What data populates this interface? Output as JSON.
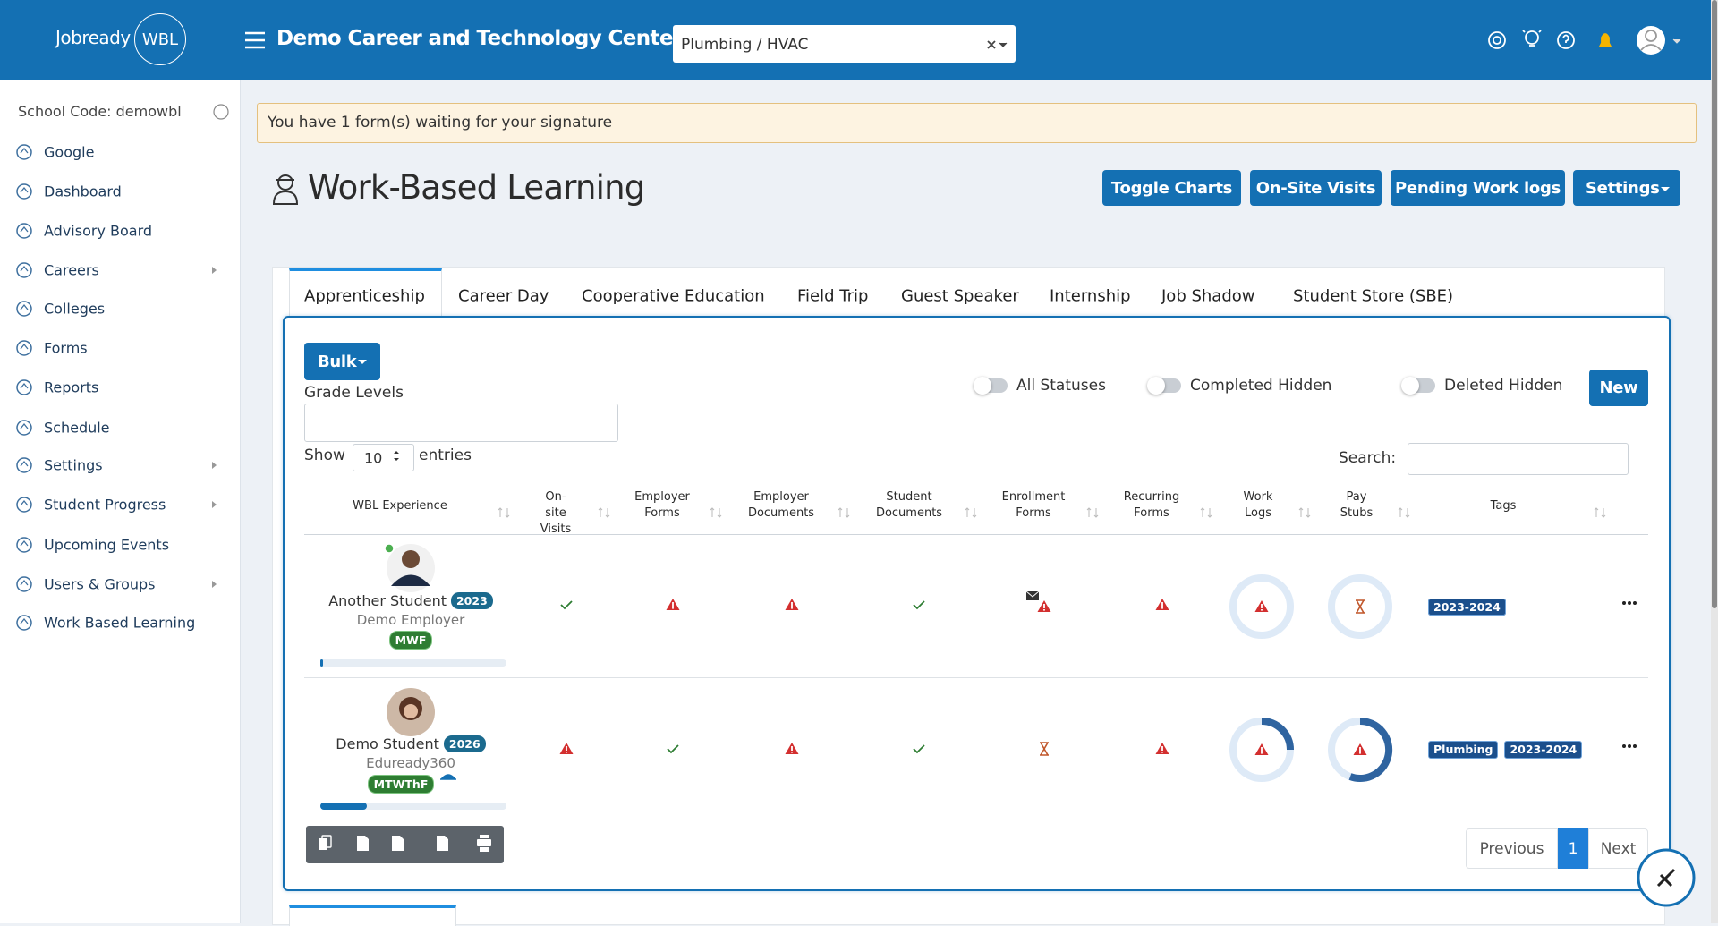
{
  "header": {
    "brand": "Jobready",
    "brand_badge": "WBL",
    "title": "Demo Career and Technology Center",
    "program_select": "Plumbing / HVAC"
  },
  "sidebar": {
    "school_code": "School Code: demowbl",
    "items": [
      "Google",
      "Dashboard",
      "Advisory Board",
      "Careers",
      "Colleges",
      "Forms",
      "Reports",
      "Schedule",
      "Settings",
      "Student Progress",
      "Upcoming Events",
      "Users & Groups",
      "Work Based Learning"
    ]
  },
  "alert": "You have 1 form(s) waiting for your signature",
  "page": {
    "title": "Work-Based Learning",
    "buttons": [
      "Toggle Charts",
      "On-Site Visits",
      "Pending Work logs",
      "Settings"
    ]
  },
  "tabs": [
    "Apprenticeship",
    "Career Day",
    "Cooperative Education",
    "Field Trip",
    "Guest Speaker",
    "Internship",
    "Job Shadow",
    "Student Store (SBE)"
  ],
  "toolbar": {
    "bulk": "Bulk",
    "grade_levels": "Grade Levels",
    "toggles": [
      "All Statuses",
      "Completed Hidden",
      "Deleted Hidden"
    ],
    "new": "New",
    "show": "Show",
    "entries_value": "10",
    "entries": "entries",
    "search": "Search:"
  },
  "table": {
    "columns": [
      "WBL Experience",
      "On-site Visits",
      "Employer Forms",
      "Employer Documents",
      "Student Documents",
      "Enrollment Forms",
      "Recurring Forms",
      "Work Logs",
      "Pay Stubs",
      "Tags"
    ],
    "rows": [
      {
        "name": "Another Student",
        "year": "2023",
        "employer": "Demo Employer",
        "schedule": "MWF",
        "tags": [
          "2023-2024"
        ]
      },
      {
        "name": "Demo Student",
        "year": "2026",
        "employer": "Eduready360",
        "schedule": "MTWThF",
        "tags": [
          "Plumbing",
          "2023-2024"
        ]
      }
    ]
  },
  "pagination": {
    "previous": "Previous",
    "page": "1",
    "next": "Next"
  }
}
